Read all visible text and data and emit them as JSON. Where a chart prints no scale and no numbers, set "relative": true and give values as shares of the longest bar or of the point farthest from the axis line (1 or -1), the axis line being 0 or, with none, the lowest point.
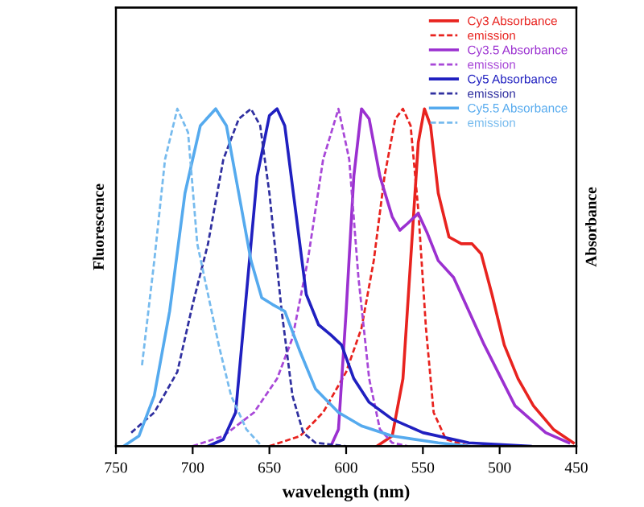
{
  "chart_data": {
    "type": "line",
    "xlabel": "wavelength (nm)",
    "ylabel": "Fluorescence",
    "y2label": "Absorbance",
    "relative": true,
    "xlim": [
      750,
      450
    ],
    "xticks": [
      750,
      700,
      650,
      600,
      550,
      500,
      450
    ],
    "grid": false,
    "legend": "top right",
    "marker": "none",
    "series": [
      {
        "name": "Cy3 Absorbance",
        "color": "#e8231f",
        "line_style": "solid",
        "x": [
          580,
          570,
          563,
          558,
          553,
          549,
          545,
          540,
          533,
          525,
          518,
          512,
          505,
          497,
          488,
          478,
          465,
          452
        ],
        "values": [
          0,
          0.03,
          0.2,
          0.55,
          0.9,
          1.0,
          0.95,
          0.75,
          0.62,
          0.6,
          0.6,
          0.57,
          0.45,
          0.3,
          0.2,
          0.12,
          0.05,
          0.01
        ]
      },
      {
        "name": "emission",
        "color": "#e8231f",
        "line_style": "dashed",
        "x": [
          650,
          630,
          615,
          600,
          590,
          582,
          575,
          568,
          563,
          558,
          553,
          548,
          543,
          535,
          520
        ],
        "values": [
          0,
          0.03,
          0.1,
          0.22,
          0.35,
          0.55,
          0.8,
          0.97,
          1.0,
          0.95,
          0.7,
          0.35,
          0.1,
          0.02,
          0
        ]
      },
      {
        "name": "Cy3.5 Absorbance",
        "color": "#9b30d0",
        "line_style": "solid",
        "x": [
          610,
          605,
          600,
          595,
          590,
          585,
          578,
          570,
          565,
          560,
          553,
          547,
          540,
          530,
          510,
          490,
          470,
          455
        ],
        "values": [
          0,
          0.05,
          0.4,
          0.8,
          1.0,
          0.97,
          0.8,
          0.68,
          0.64,
          0.66,
          0.69,
          0.63,
          0.55,
          0.5,
          0.3,
          0.12,
          0.04,
          0.01
        ]
      },
      {
        "name": "emission",
        "color": "#a848d8",
        "line_style": "dashed",
        "x": [
          700,
          680,
          660,
          645,
          635,
          625,
          615,
          605,
          598,
          592,
          585,
          578,
          570,
          560
        ],
        "values": [
          0,
          0.03,
          0.1,
          0.2,
          0.32,
          0.55,
          0.85,
          1.0,
          0.85,
          0.5,
          0.2,
          0.05,
          0.01,
          0
        ]
      },
      {
        "name": "Cy5 Absorbance",
        "color": "#2020c0",
        "line_style": "solid",
        "x": [
          690,
          680,
          672,
          665,
          658,
          650,
          645,
          640,
          633,
          626,
          618,
          610,
          603,
          595,
          585,
          570,
          550,
          520,
          480
        ],
        "values": [
          0,
          0.02,
          0.1,
          0.45,
          0.8,
          0.98,
          1.0,
          0.95,
          0.7,
          0.45,
          0.36,
          0.33,
          0.3,
          0.2,
          0.13,
          0.08,
          0.04,
          0.01,
          0
        ]
      },
      {
        "name": "emission",
        "color": "#3030a0",
        "line_style": "dashed",
        "x": [
          740,
          725,
          710,
          700,
          690,
          680,
          670,
          662,
          656,
          650,
          642,
          635,
          628,
          620,
          600
        ],
        "values": [
          0.04,
          0.1,
          0.22,
          0.42,
          0.6,
          0.85,
          0.97,
          1.0,
          0.95,
          0.75,
          0.4,
          0.15,
          0.04,
          0.01,
          0
        ]
      },
      {
        "name": "Cy5.5 Absorbance",
        "color": "#55aaee",
        "line_style": "solid",
        "x": [
          745,
          735,
          725,
          715,
          705,
          695,
          685,
          678,
          670,
          662,
          655,
          648,
          640,
          630,
          620,
          605,
          590,
          570,
          540,
          520
        ],
        "values": [
          0,
          0.03,
          0.15,
          0.4,
          0.75,
          0.95,
          1.0,
          0.95,
          0.75,
          0.55,
          0.44,
          0.42,
          0.4,
          0.28,
          0.17,
          0.1,
          0.06,
          0.03,
          0.01,
          0
        ]
      },
      {
        "name": "emission",
        "color": "#77bbee",
        "line_style": "dashed",
        "x": [
          733,
          725,
          718,
          710,
          703,
          697,
          690,
          683,
          675,
          665,
          655
        ],
        "values": [
          0.24,
          0.55,
          0.85,
          1.0,
          0.93,
          0.6,
          0.45,
          0.3,
          0.15,
          0.05,
          0
        ]
      }
    ]
  }
}
